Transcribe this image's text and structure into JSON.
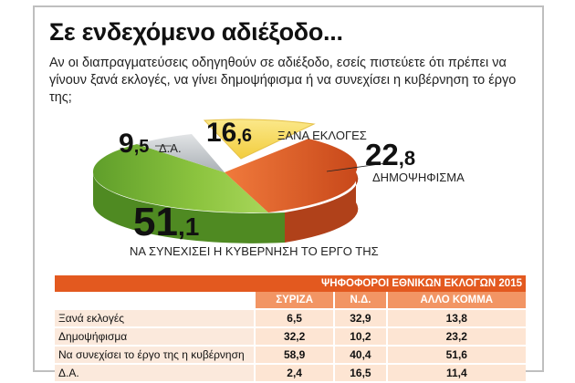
{
  "header": {
    "title": "Σε ενδεχόμενο αδιέξοδο...",
    "subtitle": "Αν οι διαπραγματεύσεις οδηγηθούν σε αδιέξοδο, εσείς πιστεύετε ότι πρέπει να γίνουν ξανά εκλογές, να γίνει δημοψήφισμα ή να συνεχίσει η κυβέρνηση το έργο της;"
  },
  "chart_data": [
    {
      "type": "pie",
      "title": "",
      "slices": [
        {
          "label": "ΞΑΝΑ ΕΚΛΟΓΕΣ",
          "int": "16",
          "dec": "6",
          "value": 16.6,
          "color": "#f6d95a"
        },
        {
          "label": "ΔΗΜΟΨΗΦΙΣΜΑ",
          "int": "22",
          "dec": "8",
          "value": 22.8,
          "color": "#e2622a"
        },
        {
          "label": "ΝΑ ΣΥΝΕΧΙΣΕΙ Η ΚΥΒΕΡΝΗΣΗ ΤΟ ΕΡΓΟ ΤΗΣ",
          "int": "51",
          "dec": "1",
          "value": 51.1,
          "color": "#8cc43f"
        },
        {
          "label": "Δ.Α.",
          "int": "9",
          "dec": "5",
          "value": 9.5,
          "color": "#c4c8cc"
        }
      ]
    },
    {
      "type": "table",
      "title": "ΨΗΦΟΦΟΡΟΙ ΕΘΝΙΚΩΝ ΕΚΛΟΓΩΝ 2015",
      "columns": [
        "ΣΥΡΙΖΑ",
        "Ν.Δ.",
        "ΑΛΛΟ ΚΟΜΜΑ"
      ],
      "rows": [
        {
          "label": "Ξανά εκλογές",
          "values": [
            "6,5",
            "32,9",
            "13,8"
          ]
        },
        {
          "label": "Δημοψήφισμα",
          "values": [
            "32,2",
            "10,2",
            "23,2"
          ]
        },
        {
          "label": "Να συνεχίσει το έργο της η κυβέρνηση",
          "values": [
            "58,9",
            "40,4",
            "51,6"
          ]
        },
        {
          "label": "Δ.Α.",
          "values": [
            "2,4",
            "16,5",
            "11,4"
          ]
        }
      ]
    }
  ]
}
